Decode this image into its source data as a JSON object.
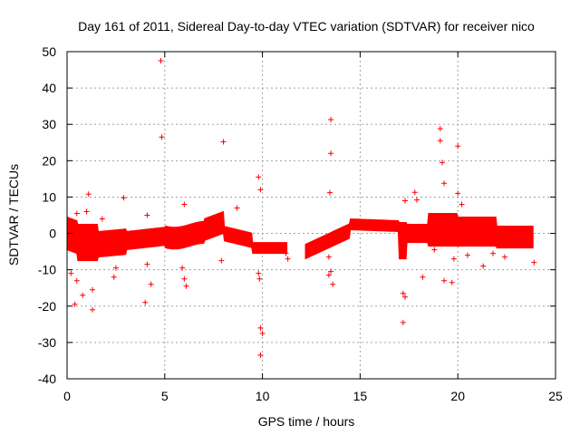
{
  "chart_data": {
    "type": "scatter",
    "title": "Day 161 of 2011, Sidereal Day-to-day VTEC variation (SDTVAR) for receiver nico",
    "xlabel": "GPS time / hours",
    "ylabel": "SDTVAR / TECUs",
    "xlim": [
      0,
      25
    ],
    "ylim": [
      -40,
      50
    ],
    "xticks": [
      0,
      5,
      10,
      15,
      20,
      25
    ],
    "yticks": [
      -40,
      -30,
      -20,
      -10,
      0,
      10,
      20,
      30,
      40,
      50
    ],
    "grid": true,
    "marker": "+",
    "color": "#ff0000",
    "series": [
      {
        "name": "SDTVAR",
        "points": [
          [
            4.8,
            47.5
          ],
          [
            4.85,
            26.5
          ],
          [
            8.0,
            25.2
          ],
          [
            13.5,
            31.3
          ],
          [
            13.5,
            22.0
          ],
          [
            19.1,
            28.8
          ],
          [
            19.1,
            25.5
          ],
          [
            19.2,
            19.5
          ],
          [
            19.3,
            13.8
          ],
          [
            20.0,
            24.0
          ],
          [
            9.8,
            15.5
          ],
          [
            9.9,
            12.0
          ],
          [
            13.45,
            11.2
          ],
          [
            17.8,
            11.3
          ],
          [
            17.9,
            9.2
          ],
          [
            1.1,
            10.8
          ],
          [
            2.9,
            9.8
          ],
          [
            17.3,
            9.0
          ],
          [
            20.0,
            11.0
          ],
          [
            20.2,
            8.0
          ],
          [
            6.0,
            8.0
          ],
          [
            8.7,
            7.0
          ],
          [
            1.0,
            6.0
          ],
          [
            0.5,
            5.5
          ],
          [
            1.8,
            4.0
          ],
          [
            4.1,
            5.0
          ],
          [
            4.1,
            -8.5
          ],
          [
            4.0,
            -19.0
          ],
          [
            4.3,
            -14.0
          ],
          [
            1.3,
            -21.0
          ],
          [
            1.3,
            -15.5
          ],
          [
            0.4,
            -19.5
          ],
          [
            0.8,
            -17.0
          ],
          [
            0.2,
            -11.0
          ],
          [
            0.5,
            -13.0
          ],
          [
            2.4,
            -12.0
          ],
          [
            2.5,
            -9.5
          ],
          [
            6.0,
            -12.5
          ],
          [
            6.1,
            -14.5
          ],
          [
            5.9,
            -9.5
          ],
          [
            7.9,
            -7.5
          ],
          [
            9.8,
            -11.0
          ],
          [
            9.85,
            -12.5
          ],
          [
            9.9,
            -26.0
          ],
          [
            10.0,
            -27.5
          ],
          [
            9.9,
            -33.5
          ],
          [
            11.3,
            -7.0
          ],
          [
            11.2,
            -5.5
          ],
          [
            13.4,
            -11.5
          ],
          [
            13.5,
            -10.5
          ],
          [
            13.6,
            -14.0
          ],
          [
            13.4,
            -6.5
          ],
          [
            17.2,
            -16.5
          ],
          [
            17.3,
            -17.5
          ],
          [
            17.2,
            -24.5
          ],
          [
            18.2,
            -12.0
          ],
          [
            19.3,
            -13.0
          ],
          [
            19.7,
            -13.5
          ],
          [
            19.8,
            -7.0
          ],
          [
            20.5,
            -6.0
          ],
          [
            21.3,
            -9.0
          ],
          [
            21.8,
            -5.5
          ],
          [
            22.4,
            -6.5
          ],
          [
            23.9,
            -8.0
          ],
          [
            18.8,
            -4.5
          ]
        ]
      }
    ]
  }
}
